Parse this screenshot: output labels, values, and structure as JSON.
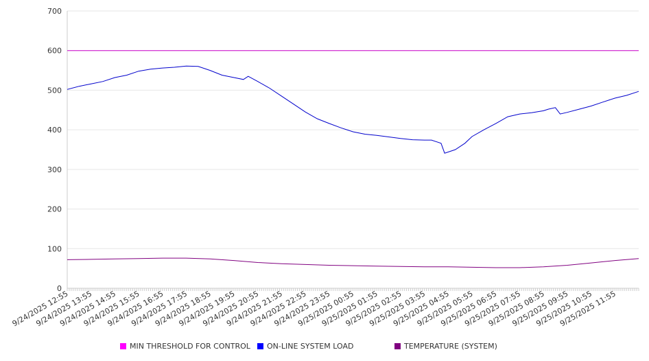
{
  "chart_data": {
    "type": "line",
    "title": "",
    "xlabel": "",
    "ylabel": "",
    "ylim": [
      0,
      700
    ],
    "yticks": [
      0,
      100,
      200,
      300,
      400,
      500,
      600,
      700
    ],
    "x_tick_labels": [
      "9/24/2025 12:55",
      "9/24/2025 13:55",
      "9/24/2025 14:55",
      "9/24/2025 15:55",
      "9/24/2025 16:55",
      "9/24/2025 17:55",
      "9/24/2025 18:55",
      "9/24/2025 19:55",
      "9/24/2025 20:55",
      "9/24/2025 21:55",
      "9/24/2025 22:55",
      "9/24/2025 23:55",
      "9/25/2025 00:55",
      "9/25/2025 01:55",
      "9/25/2025 02:55",
      "9/25/2025 03:55",
      "9/25/2025 04:55",
      "9/25/2025 05:55",
      "9/25/2025 06:55",
      "9/25/2025 07:55",
      "9/25/2025 08:55",
      "9/25/2025 09:55",
      "9/25/2025 10:55",
      "9/25/2025 11:55"
    ],
    "x_range_hours": [
      0,
      24
    ],
    "grid": true,
    "legend_position": "bottom",
    "series": [
      {
        "name": "MIN THRESHOLD FOR CONTROL",
        "color": "#cc00cc",
        "points": [
          [
            0,
            600
          ],
          [
            24,
            600
          ]
        ]
      },
      {
        "name": "ON-LINE SYSTEM LOAD",
        "color": "#0000cc",
        "points": [
          [
            0,
            502
          ],
          [
            0.5,
            510
          ],
          [
            1,
            516
          ],
          [
            1.5,
            522
          ],
          [
            2,
            532
          ],
          [
            2.5,
            538
          ],
          [
            3,
            548
          ],
          [
            3.5,
            553
          ],
          [
            4,
            556
          ],
          [
            4.5,
            558
          ],
          [
            5,
            561
          ],
          [
            5.5,
            560
          ],
          [
            6,
            550
          ],
          [
            6.5,
            538
          ],
          [
            7,
            532
          ],
          [
            7.4,
            527
          ],
          [
            7.6,
            535
          ],
          [
            8,
            522
          ],
          [
            8.5,
            505
          ],
          [
            9,
            485
          ],
          [
            9.5,
            465
          ],
          [
            10,
            445
          ],
          [
            10.5,
            428
          ],
          [
            11,
            416
          ],
          [
            11.5,
            405
          ],
          [
            12,
            395
          ],
          [
            12.5,
            389
          ],
          [
            13,
            386
          ],
          [
            13.5,
            382
          ],
          [
            14,
            378
          ],
          [
            14.5,
            375
          ],
          [
            15,
            374
          ],
          [
            15.3,
            374
          ],
          [
            15.7,
            366
          ],
          [
            15.85,
            341
          ],
          [
            16.3,
            350
          ],
          [
            16.7,
            366
          ],
          [
            17,
            383
          ],
          [
            17.5,
            400
          ],
          [
            18,
            416
          ],
          [
            18.5,
            433
          ],
          [
            19,
            440
          ],
          [
            19.5,
            443
          ],
          [
            20,
            448
          ],
          [
            20.2,
            452
          ],
          [
            20.5,
            456
          ],
          [
            20.7,
            440
          ],
          [
            21,
            444
          ],
          [
            21.5,
            452
          ],
          [
            22,
            460
          ],
          [
            22.5,
            470
          ],
          [
            23,
            480
          ],
          [
            23.5,
            487
          ],
          [
            24,
            497
          ]
        ]
      },
      {
        "name": "TEMPERATURE (SYSTEM)",
        "color": "#800080",
        "points": [
          [
            0,
            72
          ],
          [
            1,
            73
          ],
          [
            2,
            74
          ],
          [
            3,
            75
          ],
          [
            4,
            76
          ],
          [
            5,
            76
          ],
          [
            6,
            74
          ],
          [
            7,
            70
          ],
          [
            8,
            65
          ],
          [
            9,
            62
          ],
          [
            10,
            60
          ],
          [
            11,
            58
          ],
          [
            12,
            57
          ],
          [
            13,
            56
          ],
          [
            14,
            55
          ],
          [
            15,
            54
          ],
          [
            16,
            54
          ],
          [
            17,
            53
          ],
          [
            18,
            52
          ],
          [
            19,
            52
          ],
          [
            20,
            54
          ],
          [
            21,
            58
          ],
          [
            22,
            64
          ],
          [
            23,
            70
          ],
          [
            24,
            75
          ]
        ]
      }
    ]
  }
}
